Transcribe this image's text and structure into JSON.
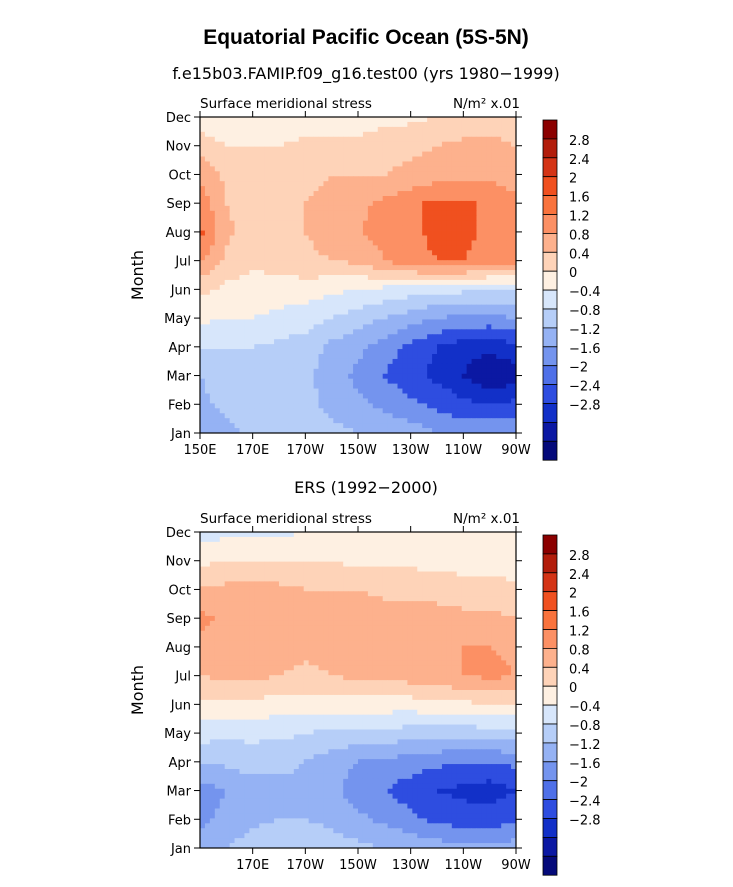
{
  "figure": {
    "title": "Equatorial Pacific Ocean (5S-5N)",
    "panel_titles": [
      "f.e15b03.FAMIP.f09_g16.test00 (yrs 1980−1999)",
      "ERS (1992−2000)"
    ]
  },
  "colorbar": {
    "levels": [
      "2.8",
      "2.4",
      "2",
      "1.6",
      "1.2",
      "0.8",
      "0.4",
      "0",
      "−0.4",
      "−0.8",
      "−1.2",
      "−1.6",
      "−2",
      "−2.4",
      "−2.8"
    ],
    "colors": [
      "#8b0000",
      "#b21d0b",
      "#d43416",
      "#f0501f",
      "#f9733d",
      "#fc9064",
      "#fdb18d",
      "#fed3b8",
      "#fef0e2",
      "#d7e6fb",
      "#b6cef8",
      "#95b2f4",
      "#7494ee",
      "#4f70e8",
      "#2e4de0",
      "#1230c8",
      "#0b18a3",
      "#050a7a"
    ]
  },
  "chart_data": [
    {
      "type": "heatmap",
      "title": "f.e15b03.FAMIP.f09_g16.test00 (yrs 1980−1999)",
      "left_label": "Surface meridional stress",
      "units": "N/m² x.01",
      "ylabel": "Month",
      "xlabel": "",
      "x_ticks": [
        "150E",
        "170E",
        "170W",
        "150W",
        "130W",
        "110W",
        "90W"
      ],
      "x_range": [
        150,
        270
      ],
      "y_ticks": [
        "Jan",
        "Feb",
        "Mar",
        "Apr",
        "May",
        "Jun",
        "Jul",
        "Aug",
        "Sep",
        "Oct",
        "Nov",
        "Dec"
      ],
      "contour_levels": [
        -2.8,
        -2.4,
        -2.0,
        -1.6,
        -1.2,
        -0.8,
        -0.4,
        0,
        0.4,
        0.8,
        1.2,
        1.6,
        2.0,
        2.4,
        2.8
      ],
      "x": [
        150,
        160,
        170,
        180,
        190,
        200,
        210,
        220,
        230,
        240,
        250,
        260,
        270
      ],
      "y": [
        1,
        2,
        3,
        4,
        5,
        6,
        7,
        8,
        9,
        10,
        11,
        12
      ],
      "z": [
        [
          -1.1,
          -0.9,
          -0.7,
          -0.6,
          -0.6,
          -0.7,
          -0.8,
          -0.9,
          -1.0,
          -1.2,
          -1.3,
          -1.3,
          -1.2
        ],
        [
          -0.9,
          -0.7,
          -0.6,
          -0.6,
          -0.7,
          -0.9,
          -1.1,
          -1.3,
          -1.5,
          -1.7,
          -1.9,
          -2.0,
          -1.9
        ],
        [
          -0.8,
          -0.6,
          -0.6,
          -0.6,
          -0.7,
          -1.0,
          -1.3,
          -1.6,
          -1.9,
          -2.1,
          -2.4,
          -2.8,
          -2.6
        ],
        [
          -0.4,
          -0.4,
          -0.4,
          -0.5,
          -0.6,
          -0.9,
          -1.1,
          -1.4,
          -1.7,
          -2.0,
          -2.2,
          -2.3,
          -2.1
        ],
        [
          0.1,
          0.0,
          0.0,
          -0.1,
          -0.2,
          -0.4,
          -0.6,
          -0.8,
          -1.0,
          -1.2,
          -1.3,
          -1.3,
          -1.2
        ],
        [
          0.5,
          0.3,
          0.2,
          0.2,
          0.2,
          0.1,
          0.0,
          -0.1,
          -0.2,
          -0.3,
          -0.3,
          -0.4,
          -0.3
        ],
        [
          1.3,
          0.7,
          0.5,
          0.6,
          0.7,
          0.8,
          0.9,
          1.2,
          1.5,
          1.6,
          1.6,
          1.5,
          1.3
        ],
        [
          1.7,
          0.9,
          0.6,
          0.7,
          0.8,
          1.0,
          1.2,
          1.3,
          1.5,
          1.7,
          1.7,
          1.5,
          1.2
        ],
        [
          1.5,
          0.8,
          0.6,
          0.7,
          0.8,
          0.9,
          1.1,
          1.3,
          1.5,
          1.7,
          1.7,
          1.5,
          1.3
        ],
        [
          1.1,
          0.7,
          0.6,
          0.6,
          0.7,
          0.8,
          0.8,
          0.8,
          0.9,
          1.0,
          1.1,
          1.1,
          1.0
        ],
        [
          0.6,
          0.4,
          0.4,
          0.4,
          0.5,
          0.5,
          0.5,
          0.6,
          0.7,
          0.8,
          0.9,
          0.9,
          0.8
        ],
        [
          0.2,
          0.1,
          0.1,
          0.1,
          0.2,
          0.2,
          0.2,
          0.3,
          0.3,
          0.4,
          0.5,
          0.6,
          0.6
        ]
      ]
    },
    {
      "type": "heatmap",
      "title": "ERS (1992−2000)",
      "left_label": "Surface meridional stress",
      "units": "N/m² x.01",
      "ylabel": "Month",
      "xlabel": "",
      "x_ticks": [
        "170E",
        "170W",
        "150W",
        "130W",
        "110W",
        "90W"
      ],
      "x_range": [
        150,
        270
      ],
      "y_ticks": [
        "Jan",
        "Feb",
        "Mar",
        "Apr",
        "May",
        "Jun",
        "Jul",
        "Aug",
        "Sep",
        "Oct",
        "Nov",
        "Dec"
      ],
      "contour_levels": [
        -2.8,
        -2.4,
        -2.0,
        -1.6,
        -1.2,
        -0.8,
        -0.4,
        0,
        0.4,
        0.8,
        1.2,
        1.6,
        2.0,
        2.4,
        2.8
      ],
      "x": [
        150,
        160,
        170,
        180,
        190,
        200,
        210,
        220,
        230,
        240,
        250,
        260,
        270
      ],
      "y": [
        1,
        2,
        3,
        4,
        5,
        6,
        7,
        8,
        9,
        10,
        11,
        12
      ],
      "z": [
        [
          -1.0,
          -0.8,
          -0.6,
          -0.5,
          -0.5,
          -0.6,
          -0.7,
          -0.8,
          -0.9,
          -1.0,
          -1.1,
          -1.1,
          -1.0
        ],
        [
          -1.3,
          -1.1,
          -0.9,
          -0.8,
          -0.8,
          -0.9,
          -1.1,
          -1.3,
          -1.5,
          -1.7,
          -1.8,
          -1.8,
          -1.7
        ],
        [
          -1.4,
          -1.2,
          -1.0,
          -0.9,
          -0.9,
          -1.1,
          -1.4,
          -1.6,
          -1.8,
          -2.0,
          -2.1,
          -2.2,
          -2.0
        ],
        [
          -0.8,
          -0.7,
          -0.6,
          -0.7,
          -0.8,
          -1.0,
          -1.2,
          -1.3,
          -1.4,
          -1.5,
          -1.6,
          -1.6,
          -1.5
        ],
        [
          -0.2,
          -0.3,
          -0.3,
          -0.3,
          -0.4,
          -0.5,
          -0.5,
          -0.5,
          -0.6,
          -0.6,
          -0.6,
          -0.6,
          -0.5
        ],
        [
          0.3,
          0.3,
          0.3,
          0.2,
          0.2,
          0.2,
          0.2,
          0.2,
          0.2,
          0.3,
          0.3,
          0.4,
          0.4
        ],
        [
          0.8,
          0.9,
          0.9,
          0.8,
          0.7,
          0.8,
          0.9,
          0.9,
          1.0,
          1.1,
          1.2,
          1.3,
          1.2
        ],
        [
          1.1,
          1.0,
          1.0,
          1.0,
          0.9,
          1.0,
          1.0,
          1.0,
          1.1,
          1.2,
          1.2,
          1.2,
          1.1
        ],
        [
          1.3,
          1.1,
          1.0,
          1.0,
          1.0,
          1.1,
          1.1,
          1.0,
          1.0,
          0.9,
          0.9,
          0.9,
          0.8
        ],
        [
          0.9,
          0.9,
          0.9,
          0.9,
          0.8,
          0.8,
          0.8,
          0.7,
          0.7,
          0.7,
          0.6,
          0.6,
          0.5
        ],
        [
          0.3,
          0.4,
          0.4,
          0.4,
          0.4,
          0.4,
          0.3,
          0.3,
          0.3,
          0.2,
          0.2,
          0.2,
          0.1
        ],
        [
          -0.2,
          -0.1,
          -0.1,
          -0.1,
          0.0,
          0.0,
          0.0,
          0.0,
          0.0,
          0.0,
          0.0,
          0.0,
          0.0
        ]
      ]
    }
  ]
}
